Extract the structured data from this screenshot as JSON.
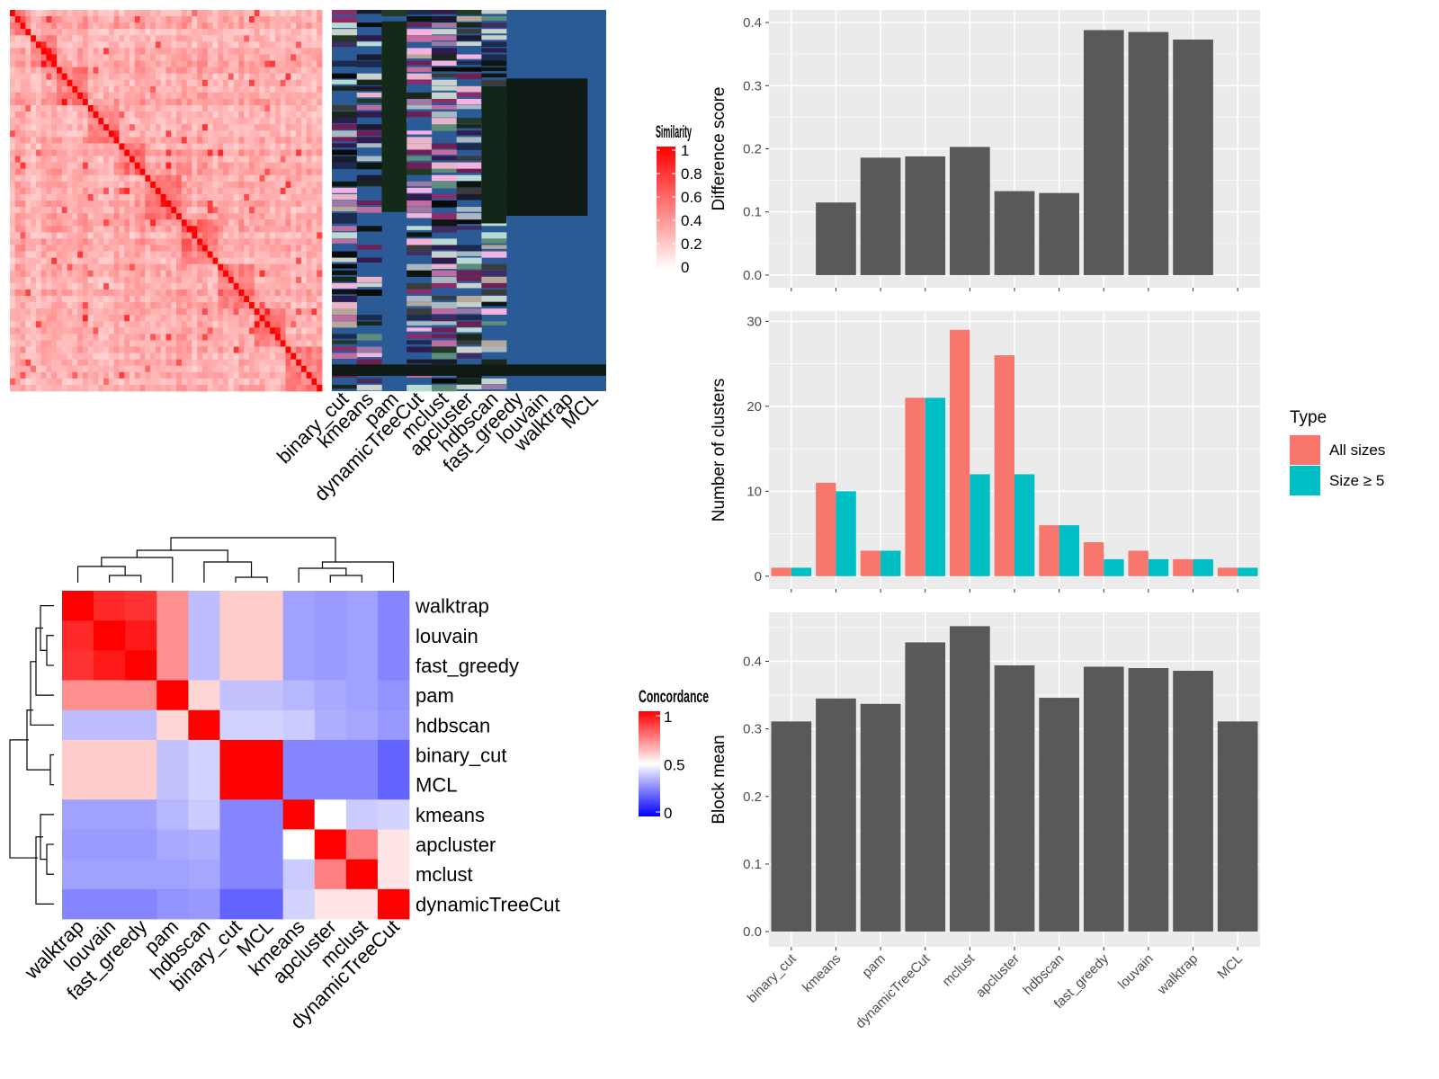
{
  "chart_data": [
    {
      "id": "similarity_heatmap",
      "type": "heatmap",
      "legend_title": "Similarity",
      "legend_ticks": [
        "1",
        "0.8",
        "0.6",
        "0.4",
        "0.2",
        "0"
      ],
      "colors": {
        "high": "#ff0000",
        "low": "#ffffff"
      }
    },
    {
      "id": "cluster_assignment_heatmap",
      "type": "heatmap",
      "columns": [
        "binary_cut",
        "kmeans",
        "pam",
        "dynamicTreeCut",
        "mclust",
        "apcluster",
        "hdbscan",
        "fast_greedy",
        "louvain",
        "walktrap",
        "MCL"
      ],
      "colors": {
        "background": "#2b5b97"
      }
    },
    {
      "id": "concordance_heatmap",
      "type": "heatmap",
      "legend_title": "Concordance",
      "legend_ticks": [
        "1",
        "0.5",
        "0"
      ],
      "rows": [
        "walktrap",
        "louvain",
        "fast_greedy",
        "pam",
        "hdbscan",
        "binary_cut",
        "MCL",
        "kmeans",
        "apcluster",
        "mclust",
        "dynamicTreeCut"
      ],
      "columns": [
        "walktrap",
        "louvain",
        "fast_greedy",
        "pam",
        "hdbscan",
        "binary_cut",
        "MCL",
        "kmeans",
        "apcluster",
        "mclust",
        "dynamicTreeCut"
      ],
      "values": [
        [
          1.0,
          0.92,
          0.9,
          0.72,
          0.4,
          0.6,
          0.6,
          0.3,
          0.28,
          0.3,
          0.2
        ],
        [
          0.92,
          1.0,
          0.95,
          0.72,
          0.4,
          0.6,
          0.6,
          0.3,
          0.28,
          0.3,
          0.2
        ],
        [
          0.9,
          0.95,
          1.0,
          0.72,
          0.4,
          0.6,
          0.6,
          0.3,
          0.28,
          0.3,
          0.2
        ],
        [
          0.72,
          0.72,
          0.72,
          1.0,
          0.58,
          0.42,
          0.42,
          0.38,
          0.33,
          0.3,
          0.25
        ],
        [
          0.4,
          0.4,
          0.4,
          0.58,
          1.0,
          0.48,
          0.48,
          0.45,
          0.35,
          0.32,
          0.27
        ],
        [
          0.6,
          0.6,
          0.6,
          0.42,
          0.48,
          1.0,
          1.0,
          0.2,
          0.2,
          0.2,
          0.08
        ],
        [
          0.6,
          0.6,
          0.6,
          0.42,
          0.48,
          1.0,
          1.0,
          0.2,
          0.2,
          0.2,
          0.08
        ],
        [
          0.3,
          0.3,
          0.3,
          0.38,
          0.45,
          0.2,
          0.2,
          1.0,
          0.5,
          0.45,
          0.48
        ],
        [
          0.28,
          0.28,
          0.28,
          0.33,
          0.35,
          0.2,
          0.2,
          0.5,
          1.0,
          0.75,
          0.55
        ],
        [
          0.3,
          0.3,
          0.3,
          0.3,
          0.32,
          0.2,
          0.2,
          0.45,
          0.75,
          1.0,
          0.55
        ],
        [
          0.2,
          0.2,
          0.2,
          0.25,
          0.27,
          0.08,
          0.08,
          0.48,
          0.55,
          0.55,
          1.0
        ]
      ],
      "colors": {
        "high": "#ff0000",
        "mid": "#ffffff",
        "low": "#0000ff"
      }
    },
    {
      "id": "difference_score",
      "type": "bar",
      "categories": [
        "binary_cut",
        "kmeans",
        "pam",
        "dynamicTreeCut",
        "mclust",
        "apcluster",
        "hdbscan",
        "fast_greedy",
        "louvain",
        "walktrap",
        "MCL"
      ],
      "values": [
        0,
        0.115,
        0.186,
        0.188,
        0.203,
        0.133,
        0.13,
        0.388,
        0.385,
        0.373,
        0
      ],
      "ylabel": "Difference score",
      "ylim": [
        0,
        0.4
      ],
      "yticks": [
        "0.0",
        "0.1",
        "0.2",
        "0.3",
        "0.4"
      ],
      "grid": true
    },
    {
      "id": "number_of_clusters",
      "type": "bar",
      "categories": [
        "binary_cut",
        "kmeans",
        "pam",
        "dynamicTreeCut",
        "mclust",
        "apcluster",
        "hdbscan",
        "fast_greedy",
        "louvain",
        "walktrap",
        "MCL"
      ],
      "series": [
        {
          "name": "All sizes",
          "color": "#f8766d",
          "values": [
            1,
            11,
            3,
            21,
            29,
            26,
            6,
            4,
            3,
            2,
            1
          ]
        },
        {
          "name": "Size ≥ 5",
          "color": "#00bfc4",
          "values": [
            1,
            10,
            3,
            21,
            12,
            12,
            6,
            2,
            2,
            2,
            1
          ]
        }
      ],
      "ylabel": "Number of clusters",
      "ylim": [
        0,
        30
      ],
      "yticks": [
        "0",
        "10",
        "20",
        "30"
      ],
      "legend_title": "Type",
      "legend": "right",
      "grid": true
    },
    {
      "id": "block_mean",
      "type": "bar",
      "categories": [
        "binary_cut",
        "kmeans",
        "pam",
        "dynamicTreeCut",
        "mclust",
        "apcluster",
        "hdbscan",
        "fast_greedy",
        "louvain",
        "walktrap",
        "MCL"
      ],
      "values": [
        0.311,
        0.345,
        0.337,
        0.428,
        0.452,
        0.394,
        0.346,
        0.392,
        0.39,
        0.386,
        0.311
      ],
      "ylabel": "Block mean",
      "ylim": [
        0,
        0.45
      ],
      "yticks": [
        "0.0",
        "0.1",
        "0.2",
        "0.3",
        "0.4"
      ],
      "grid": true
    }
  ]
}
